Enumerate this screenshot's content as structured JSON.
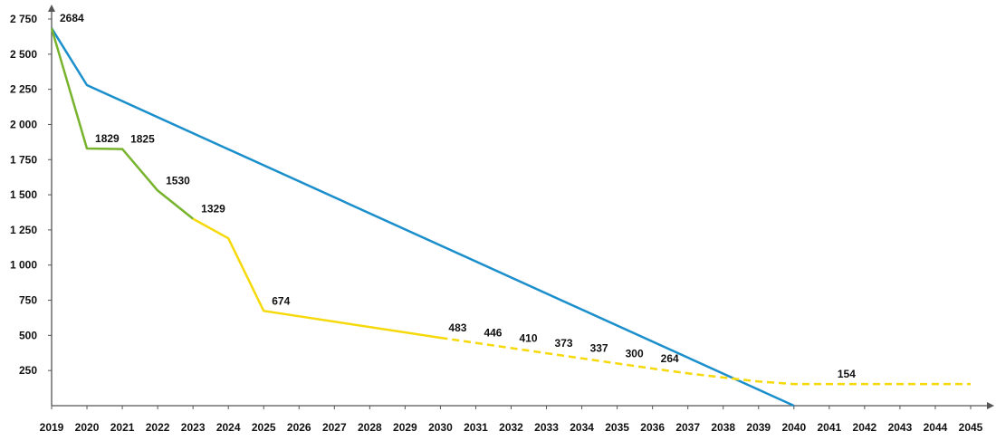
{
  "chart_data": {
    "type": "line",
    "title": "",
    "xlabel": "",
    "ylabel": "",
    "xlim": [
      2019,
      2045
    ],
    "ylim": [
      0,
      2750
    ],
    "grid": false,
    "x_ticks": [
      2019,
      2020,
      2021,
      2022,
      2023,
      2024,
      2025,
      2026,
      2027,
      2028,
      2029,
      2030,
      2031,
      2032,
      2033,
      2034,
      2035,
      2036,
      2037,
      2038,
      2039,
      2040,
      2041,
      2042,
      2043,
      2044,
      2045
    ],
    "y_ticks": [
      {
        "value": 250,
        "label": "250"
      },
      {
        "value": 500,
        "label": "500"
      },
      {
        "value": 750,
        "label": "750"
      },
      {
        "value": 1000,
        "label": "1 000"
      },
      {
        "value": 1250,
        "label": "1 250"
      },
      {
        "value": 1500,
        "label": "1 500"
      },
      {
        "value": 1750,
        "label": "1 750"
      },
      {
        "value": 2000,
        "label": "2 000"
      },
      {
        "value": 2250,
        "label": "2 250"
      },
      {
        "value": 2500,
        "label": "2 500"
      },
      {
        "value": 2750,
        "label": "2 750"
      }
    ],
    "series": [
      {
        "key": "target",
        "color": "#1b8fcb",
        "style": "solid",
        "points": [
          [
            2019,
            2684
          ],
          [
            2020,
            2280
          ],
          [
            2040,
            0
          ]
        ]
      },
      {
        "key": "actual",
        "color": "#77b32c",
        "style": "solid",
        "points": [
          [
            2019,
            2684
          ],
          [
            2020,
            1829
          ],
          [
            2021,
            1825
          ],
          [
            2022,
            1530
          ],
          [
            2023,
            1329
          ]
        ]
      },
      {
        "key": "forecast",
        "color": "#f5d90a",
        "style": "solid",
        "points": [
          [
            2023,
            1329
          ],
          [
            2024,
            1190
          ],
          [
            2025,
            674
          ],
          [
            2030,
            483
          ]
        ]
      },
      {
        "key": "projection",
        "color": "#f5d90a",
        "style": "dashed",
        "points": [
          [
            2030,
            483
          ],
          [
            2031,
            446
          ],
          [
            2032,
            410
          ],
          [
            2033,
            373
          ],
          [
            2034,
            337
          ],
          [
            2035,
            300
          ],
          [
            2036,
            264
          ],
          [
            2037,
            230
          ],
          [
            2038,
            200
          ],
          [
            2039,
            172
          ],
          [
            2040,
            154
          ],
          [
            2045,
            154
          ]
        ]
      }
    ],
    "data_labels": [
      {
        "x": 2019,
        "y": 2684,
        "text": "2684"
      },
      {
        "x": 2020,
        "y": 1829,
        "text": "1829"
      },
      {
        "x": 2021,
        "y": 1825,
        "text": "1825"
      },
      {
        "x": 2022,
        "y": 1530,
        "text": "1530"
      },
      {
        "x": 2023,
        "y": 1329,
        "text": "1329"
      },
      {
        "x": 2025,
        "y": 674,
        "text": "674"
      },
      {
        "x": 2030,
        "y": 483,
        "text": "483"
      },
      {
        "x": 2031,
        "y": 446,
        "text": "446"
      },
      {
        "x": 2032,
        "y": 410,
        "text": "410"
      },
      {
        "x": 2033,
        "y": 373,
        "text": "373"
      },
      {
        "x": 2034,
        "y": 337,
        "text": "337"
      },
      {
        "x": 2035,
        "y": 300,
        "text": "300"
      },
      {
        "x": 2036,
        "y": 264,
        "text": "264"
      },
      {
        "x": 2041,
        "y": 154,
        "text": "154"
      }
    ],
    "axis_color": "#555555"
  }
}
